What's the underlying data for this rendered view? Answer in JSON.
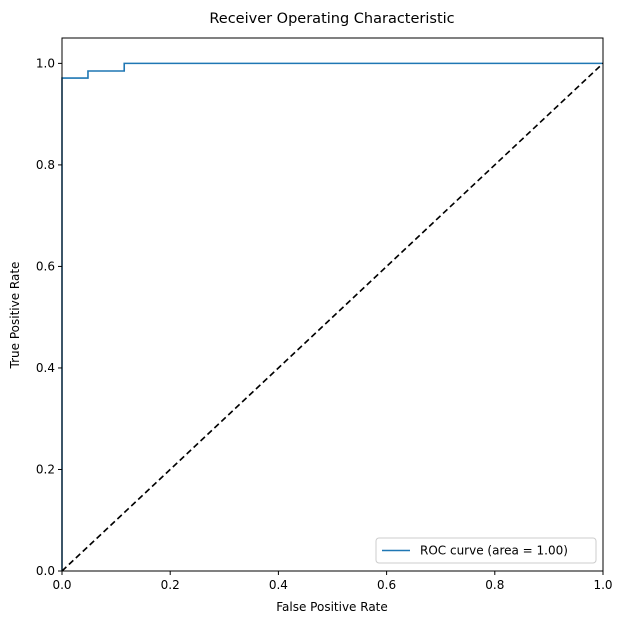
{
  "chart_data": {
    "type": "line",
    "title": "Receiver Operating Characteristic",
    "xlabel": "False Positive Rate",
    "ylabel": "True Positive Rate",
    "xlim": [
      0.0,
      1.0
    ],
    "ylim": [
      0.0,
      1.05
    ],
    "x_ticks": [
      0.0,
      0.2,
      0.4,
      0.6,
      0.8,
      1.0
    ],
    "x_tick_labels": [
      "0.0",
      "0.2",
      "0.4",
      "0.6",
      "0.8",
      "1.0"
    ],
    "y_ticks": [
      0.0,
      0.2,
      0.4,
      0.6,
      0.8,
      1.0
    ],
    "y_tick_labels": [
      "0.0",
      "0.2",
      "0.4",
      "0.6",
      "0.8",
      "1.0"
    ],
    "grid": false,
    "legend_position": "lower-right",
    "series": [
      {
        "name": "ROC curve (area = 1.00)",
        "color": "#1f77b4",
        "style": "step",
        "x": [
          0.0,
          0.0,
          0.048,
          0.048,
          0.115,
          0.115,
          1.0
        ],
        "y": [
          0.0,
          0.971,
          0.971,
          0.985,
          0.985,
          1.0,
          1.0
        ]
      },
      {
        "name": "",
        "color": "#000000",
        "style": "dashed",
        "x": [
          0.0,
          1.0
        ],
        "y": [
          0.0,
          1.0
        ]
      }
    ]
  }
}
